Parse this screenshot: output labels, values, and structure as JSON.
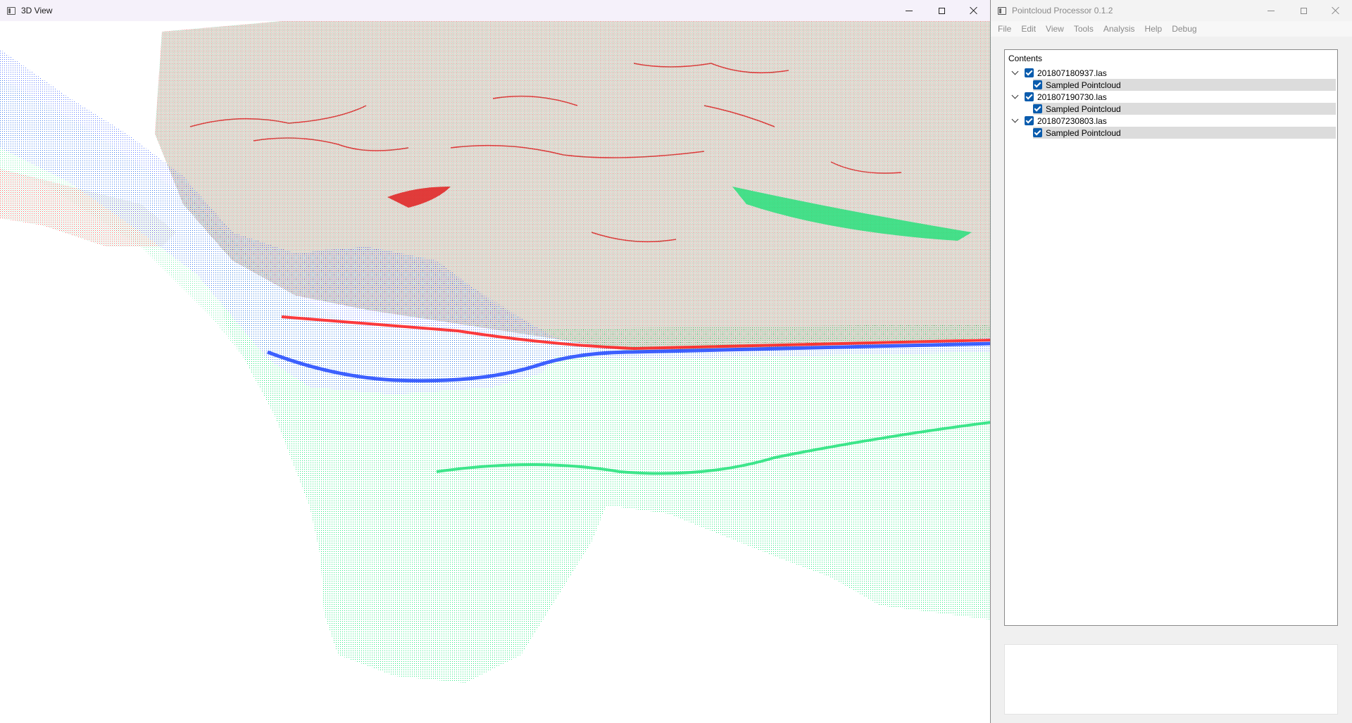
{
  "view3d": {
    "title": "3D View",
    "icon": "app-window-icon",
    "colors": {
      "red": "#ff1a1a",
      "blue": "#1e46ff",
      "green": "#19e678"
    }
  },
  "processor": {
    "title": "Pointcloud Processor 0.1.2",
    "menu": [
      "File",
      "Edit",
      "View",
      "Tools",
      "Analysis",
      "Help",
      "Debug"
    ],
    "tree": {
      "header": "Contents",
      "files": [
        {
          "name": "201807180937.las",
          "checked": true,
          "expanded": true,
          "child": {
            "name": "Sampled Pointcloud",
            "checked": true
          }
        },
        {
          "name": "201807190730.las",
          "checked": true,
          "expanded": true,
          "child": {
            "name": "Sampled Pointcloud",
            "checked": true
          }
        },
        {
          "name": "201807230803.las",
          "checked": true,
          "expanded": true,
          "child": {
            "name": "Sampled Pointcloud",
            "checked": true
          }
        }
      ]
    },
    "log": ""
  }
}
